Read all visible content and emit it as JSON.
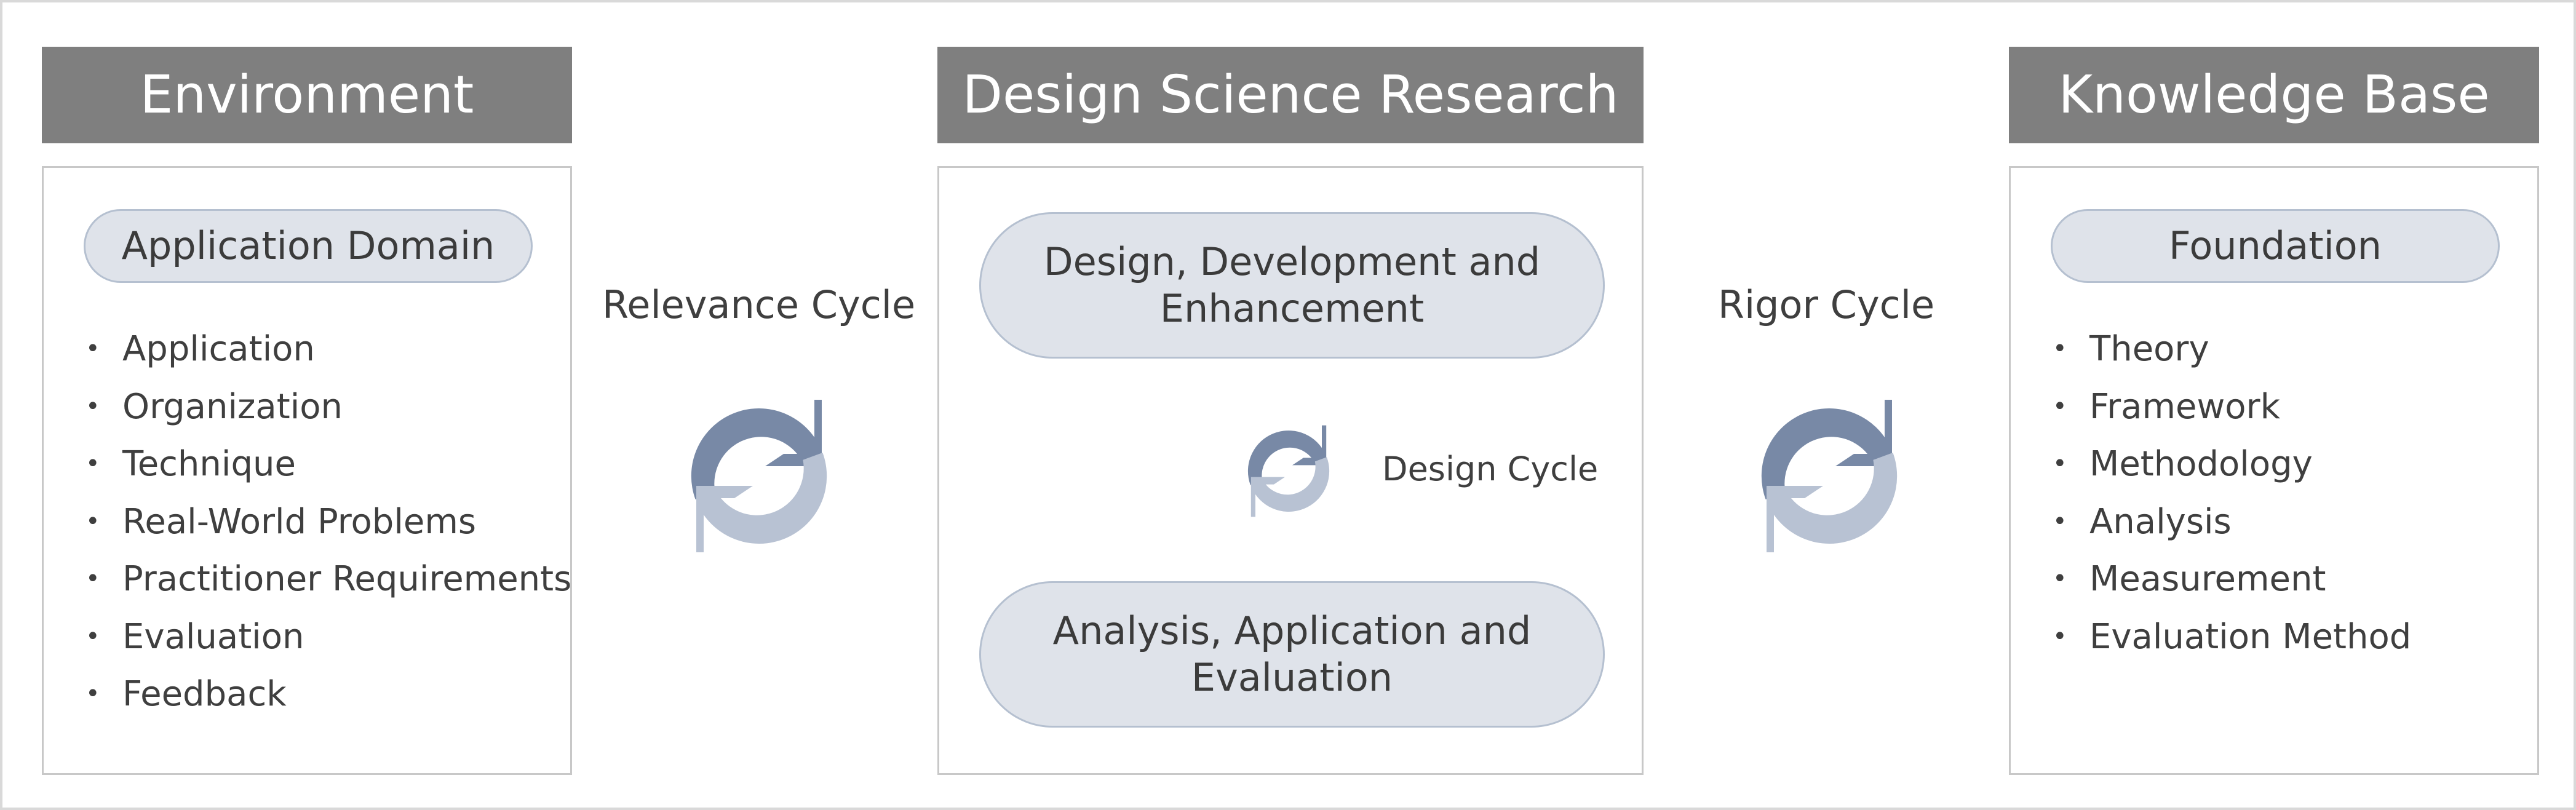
{
  "columns": {
    "environment": {
      "title": "Environment",
      "subheading": "Application Domain",
      "items": [
        "Application",
        "Organization",
        "Technique",
        "Real-World Problems",
        "Practitioner Requirements",
        "Evaluation",
        "Feedback"
      ]
    },
    "dsr": {
      "title": "Design Science Research",
      "top_block": "Design, Development and Enhancement",
      "bottom_block": "Analysis, Application and Evaluation",
      "cycle_label": "Design Cycle"
    },
    "knowledge": {
      "title": "Knowledge Base",
      "subheading": "Foundation",
      "items": [
        "Theory",
        "Framework",
        "Methodology",
        "Analysis",
        "Measurement",
        "Evaluation Method"
      ]
    }
  },
  "cycles": {
    "relevance_label": "Relevance Cycle",
    "rigor_label": "Rigor Cycle"
  },
  "colors": {
    "header_bg": "#7f7f7f",
    "pill_bg": "#dfe3ea",
    "arrow_dark": "#7889a6",
    "arrow_light": "#b8c2d3"
  }
}
